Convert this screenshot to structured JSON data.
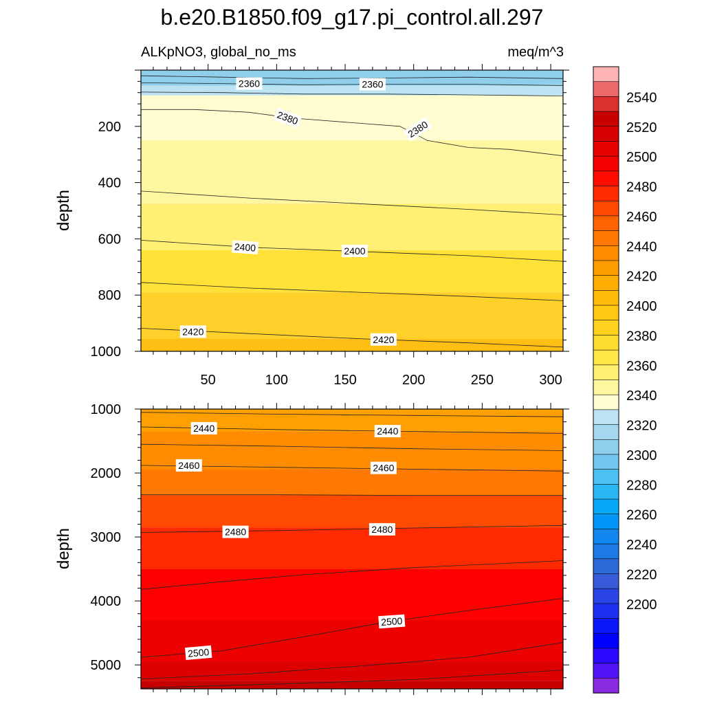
{
  "title": "b.e20.B1850.f09_g17.pi_control.all.297",
  "left_subtitle": "ALKpNO3, global_no_ms",
  "right_subtitle": "meq/m^3",
  "chart_data": [
    {
      "type": "heatmap",
      "panel": "upper",
      "ylabel": "depth",
      "xlim": [
        1,
        309
      ],
      "ylim": [
        0,
        1000
      ],
      "y_inverted": true,
      "x_ticks": [
        50,
        100,
        150,
        200,
        250,
        300
      ],
      "y_ticks": [
        200,
        400,
        600,
        800,
        1000
      ],
      "contours": [
        {
          "level": 2360,
          "points": [
            [
              1,
              20
            ],
            [
              60,
              25
            ],
            [
              120,
              30
            ],
            [
              180,
              28
            ],
            [
              240,
              25
            ],
            [
              309,
              30
            ]
          ]
        },
        {
          "level": 2360,
          "points": [
            [
              1,
              45
            ],
            [
              60,
              48
            ],
            [
              120,
              52
            ],
            [
              180,
              50
            ],
            [
              240,
              50
            ],
            [
              309,
              55
            ]
          ]
        },
        {
          "level": 2370,
          "points": [
            [
              1,
              78
            ],
            [
              60,
              80
            ],
            [
              120,
              85
            ],
            [
              180,
              85
            ],
            [
              240,
              88
            ],
            [
              309,
              92
            ]
          ]
        },
        {
          "level": 2380,
          "points": [
            [
              1,
              140
            ],
            [
              40,
              140
            ],
            [
              80,
              150
            ],
            [
              110,
              170
            ],
            [
              150,
              185
            ],
            [
              190,
              200
            ],
            [
              210,
              250
            ],
            [
              240,
              275
            ],
            [
              270,
              282
            ],
            [
              309,
              305
            ]
          ]
        },
        {
          "level": 2390,
          "points": [
            [
              1,
              430
            ],
            [
              80,
              455
            ],
            [
              160,
              475
            ],
            [
              240,
              495
            ],
            [
              309,
              515
            ]
          ]
        },
        {
          "level": 2400,
          "points": [
            [
              1,
              605
            ],
            [
              80,
              630
            ],
            [
              160,
              645
            ],
            [
              240,
              660
            ],
            [
              309,
              680
            ]
          ]
        },
        {
          "level": 2410,
          "points": [
            [
              1,
              755
            ],
            [
              80,
              775
            ],
            [
              160,
              790
            ],
            [
              240,
              805
            ],
            [
              309,
              820
            ]
          ]
        },
        {
          "level": 2420,
          "points": [
            [
              1,
              918
            ],
            [
              80,
              937
            ],
            [
              160,
              955
            ],
            [
              240,
              970
            ],
            [
              309,
              985
            ]
          ]
        }
      ],
      "contour_labels": [
        {
          "text": "2360",
          "x": 80,
          "y": 48,
          "angle": 0
        },
        {
          "text": "2360",
          "x": 170,
          "y": 50,
          "angle": 0
        },
        {
          "text": "2380",
          "x": 108,
          "y": 170,
          "angle": 20
        },
        {
          "text": "2380",
          "x": 203,
          "y": 210,
          "angle": -33
        },
        {
          "text": "2400",
          "x": 77,
          "y": 630,
          "angle": 4
        },
        {
          "text": "2400",
          "x": 157,
          "y": 643,
          "angle": 0
        },
        {
          "text": "2420",
          "x": 39,
          "y": 930,
          "angle": 0
        },
        {
          "text": "2420",
          "x": 178,
          "y": 958,
          "angle": 0
        }
      ],
      "fill_bands": [
        {
          "color": "#8fcfeb",
          "top": 0
        },
        {
          "color": "#bde3f2",
          "top": 55
        },
        {
          "color": "#fffdd0",
          "top": 90
        },
        {
          "color": "#fff7a0",
          "top": 250
        },
        {
          "color": "#ffef72",
          "top": 475
        },
        {
          "color": "#ffe138",
          "top": 640
        },
        {
          "color": "#ffd02a",
          "top": 790
        },
        {
          "color": "#ffbe14",
          "top": 955
        }
      ]
    },
    {
      "type": "heatmap",
      "panel": "lower",
      "ylabel": "depth",
      "xlim": [
        1,
        309
      ],
      "ylim": [
        1000,
        5375
      ],
      "y_inverted": true,
      "x_ticks": [
        50,
        100,
        150,
        200,
        250,
        300
      ],
      "y_ticks": [
        1000,
        2000,
        3000,
        4000,
        5000
      ],
      "contours": [
        {
          "level": 2430,
          "points": [
            [
              1,
              1050
            ],
            [
              100,
              1080
            ],
            [
              200,
              1100
            ],
            [
              309,
              1120
            ]
          ]
        },
        {
          "level": 2440,
          "points": [
            [
              1,
              1280
            ],
            [
              100,
              1320
            ],
            [
              200,
              1350
            ],
            [
              309,
              1380
            ]
          ]
        },
        {
          "level": 2450,
          "points": [
            [
              1,
              1550
            ],
            [
              100,
              1580
            ],
            [
              200,
              1620
            ],
            [
              309,
              1650
            ]
          ]
        },
        {
          "level": 2460,
          "points": [
            [
              1,
              1880
            ],
            [
              100,
              1910
            ],
            [
              200,
              1940
            ],
            [
              309,
              1970
            ]
          ]
        },
        {
          "level": 2470,
          "points": [
            [
              1,
              2340
            ],
            [
              100,
              2340
            ],
            [
              200,
              2350
            ],
            [
              309,
              2350
            ]
          ]
        },
        {
          "level": 2480,
          "points": [
            [
              1,
              2930
            ],
            [
              100,
              2900
            ],
            [
              200,
              2860
            ],
            [
              309,
              2820
            ]
          ]
        },
        {
          "level": 2490,
          "points": [
            [
              1,
              3820
            ],
            [
              60,
              3700
            ],
            [
              120,
              3590
            ],
            [
              200,
              3480
            ],
            [
              309,
              3370
            ]
          ]
        },
        {
          "level": 2500,
          "points": [
            [
              1,
              4880
            ],
            [
              60,
              4780
            ],
            [
              120,
              4560
            ],
            [
              180,
              4330
            ],
            [
              240,
              4150
            ],
            [
              309,
              3960
            ]
          ]
        },
        {
          "level": 2510,
          "points": [
            [
              1,
              5220
            ],
            [
              80,
              5140
            ],
            [
              160,
              5020
            ],
            [
              240,
              4880
            ],
            [
              309,
              4650
            ]
          ]
        },
        {
          "level": 2520,
          "points": [
            [
              1,
              5360
            ],
            [
              100,
              5300
            ],
            [
              200,
              5230
            ],
            [
              309,
              5080
            ]
          ]
        }
      ],
      "contour_labels": [
        {
          "text": "2440",
          "x": 47,
          "y": 1300,
          "angle": 0
        },
        {
          "text": "2440",
          "x": 181,
          "y": 1345,
          "angle": 0
        },
        {
          "text": "2460",
          "x": 36,
          "y": 1880,
          "angle": 0
        },
        {
          "text": "2460",
          "x": 178,
          "y": 1920,
          "angle": 0
        },
        {
          "text": "2480",
          "x": 70,
          "y": 2920,
          "angle": 0
        },
        {
          "text": "2480",
          "x": 177,
          "y": 2880,
          "angle": 0
        },
        {
          "text": "2500",
          "x": 43,
          "y": 4810,
          "angle": -5
        },
        {
          "text": "2500",
          "x": 184,
          "y": 4320,
          "angle": -4
        }
      ],
      "fill_bands": [
        {
          "color": "#ffa000",
          "top": 1000
        },
        {
          "color": "#ff8c00",
          "top": 1350
        },
        {
          "color": "#ff7800",
          "top": 1940
        },
        {
          "color": "#ff4b00",
          "top": 2345
        },
        {
          "color": "#ff2a00",
          "top": 2850
        },
        {
          "color": "#ff0000",
          "top": 3500
        },
        {
          "color": "#ec0000",
          "top": 4300
        },
        {
          "color": "#dc0000",
          "top": 4950
        },
        {
          "color": "#c70000",
          "top": 5250
        }
      ]
    }
  ],
  "colorbar": {
    "labels": [
      "2540",
      "2520",
      "2500",
      "2480",
      "2460",
      "2440",
      "2420",
      "2400",
      "2380",
      "2360",
      "2340",
      "2320",
      "2300",
      "2280",
      "2260",
      "2240",
      "2220",
      "2200"
    ],
    "colors": [
      "#ffb4b4",
      "#ee6a6a",
      "#dc2f2f",
      "#c80000",
      "#d70000",
      "#e60000",
      "#f50000",
      "#ff0d00",
      "#ff2d00",
      "#ff4a00",
      "#ff6400",
      "#ff7800",
      "#ff8c00",
      "#ff9e00",
      "#ffad00",
      "#ffbb0c",
      "#ffc814",
      "#ffd31e",
      "#ffdd2e",
      "#ffe746",
      "#ffef72",
      "#fff7a0",
      "#fffdd0",
      "#bde3f2",
      "#a5d8ef",
      "#8fcfeb",
      "#71c6ee",
      "#4ec1f3",
      "#2ab8f5",
      "#06a9f7",
      "#0096f7",
      "#1188ef",
      "#1e78e6",
      "#2b6ad9",
      "#3a5bd9",
      "#2a44e8",
      "#1a2ff0",
      "#0b16fa",
      "#0000ff",
      "#2b0aff",
      "#5014f6",
      "#8a2be2"
    ]
  }
}
